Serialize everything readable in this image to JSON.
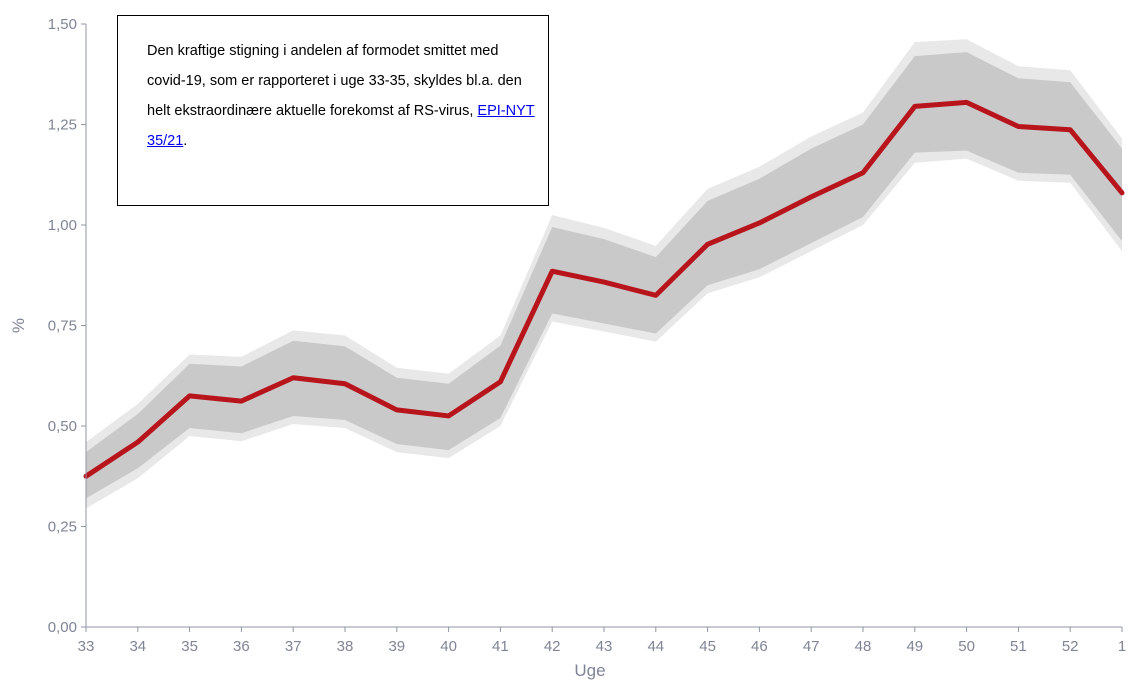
{
  "chart_data": {
    "type": "line",
    "xlabel": "Uge",
    "ylabel": "%",
    "ylim": [
      0,
      1.5
    ],
    "y_ticks": [
      0,
      0.25,
      0.5,
      0.75,
      1.0,
      1.25,
      1.5
    ],
    "y_tick_labels": [
      "0,00",
      "0,25",
      "0,50",
      "0,75",
      "1,00",
      "1,25",
      "1,50"
    ],
    "categories": [
      "33",
      "34",
      "35",
      "36",
      "37",
      "38",
      "39",
      "40",
      "41",
      "42",
      "43",
      "44",
      "45",
      "46",
      "47",
      "48",
      "49",
      "50",
      "51",
      "52",
      "1"
    ],
    "series": [
      {
        "values": [
          0.375,
          0.46,
          0.575,
          0.562,
          0.62,
          0.605,
          0.54,
          0.525,
          0.61,
          0.885,
          0.858,
          0.825,
          0.952,
          1.005,
          1.07,
          1.13,
          1.295,
          1.305,
          1.245,
          1.237,
          1.08
        ],
        "lower_inner": [
          0.32,
          0.395,
          0.495,
          0.482,
          0.525,
          0.515,
          0.455,
          0.44,
          0.52,
          0.78,
          0.755,
          0.73,
          0.85,
          0.89,
          0.955,
          1.02,
          1.18,
          1.185,
          1.13,
          1.125,
          0.96
        ],
        "upper_inner": [
          0.435,
          0.53,
          0.655,
          0.648,
          0.712,
          0.698,
          0.62,
          0.605,
          0.7,
          0.995,
          0.965,
          0.92,
          1.06,
          1.115,
          1.19,
          1.25,
          1.42,
          1.43,
          1.365,
          1.355,
          1.19
        ],
        "lower_outer": [
          0.295,
          0.37,
          0.475,
          0.462,
          0.505,
          0.495,
          0.435,
          0.42,
          0.5,
          0.76,
          0.735,
          0.71,
          0.83,
          0.87,
          0.935,
          1.0,
          1.155,
          1.165,
          1.11,
          1.105,
          0.935
        ],
        "upper_outer": [
          0.46,
          0.555,
          0.678,
          0.672,
          0.738,
          0.725,
          0.645,
          0.63,
          0.725,
          1.025,
          0.993,
          0.948,
          1.09,
          1.145,
          1.22,
          1.28,
          1.455,
          1.462,
          1.395,
          1.385,
          1.215
        ]
      }
    ],
    "grid": false,
    "colors": {
      "line": "#b7151b",
      "inner_band": "#c9c9c9",
      "outer_band": "#e8e8e8",
      "axis": "#8f95a3",
      "text": "#7f8596"
    }
  },
  "annotation": {
    "text": "Den kraftige stigning i andelen af formodet smittet med covid-19, som er rapporteret i uge 33-35, skyldes bl.a. den helt ekstraordinære aktuelle forekomst af RS-virus, ",
    "link_text": "EPI-NYT 35/21",
    "suffix": "."
  }
}
